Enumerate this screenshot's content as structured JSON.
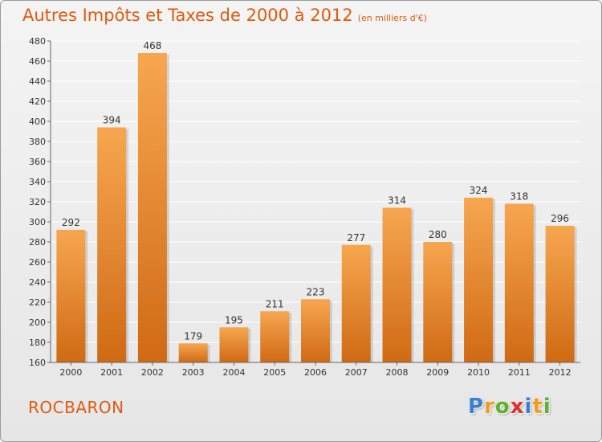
{
  "header": {
    "title": "Autres Impôts et Taxes de 2000 à 2012",
    "subtitle": "(en milliers d'€)"
  },
  "footer": {
    "commune": "ROCBARON",
    "logo": {
      "letters": [
        "P",
        "r",
        "o",
        "x",
        "i",
        "t",
        "i"
      ],
      "colors": [
        "#3a7fd0",
        "#f39a1c",
        "#5cb22c",
        "#e0322a",
        "#3a7fd0",
        "#f39a1c",
        "#5cb22c"
      ]
    }
  },
  "colors": {
    "bar_top": "#f7a650",
    "bar_bottom": "#d06a14",
    "title": "#e05a10"
  },
  "chart_data": {
    "type": "bar",
    "categories": [
      "2000",
      "2001",
      "2002",
      "2003",
      "2004",
      "2005",
      "2006",
      "2007",
      "2008",
      "2009",
      "2010",
      "2011",
      "2012"
    ],
    "values": [
      292,
      394,
      468,
      179,
      195,
      211,
      223,
      277,
      314,
      280,
      324,
      318,
      296
    ],
    "title": "Autres Impôts et Taxes de 2000 à 2012",
    "xlabel": "",
    "ylabel": "",
    "ylim": [
      160,
      480
    ],
    "yticks": [
      160,
      180,
      200,
      220,
      240,
      260,
      280,
      300,
      320,
      340,
      360,
      380,
      400,
      420,
      440,
      460,
      480
    ],
    "grid": true,
    "data_labels": true
  }
}
